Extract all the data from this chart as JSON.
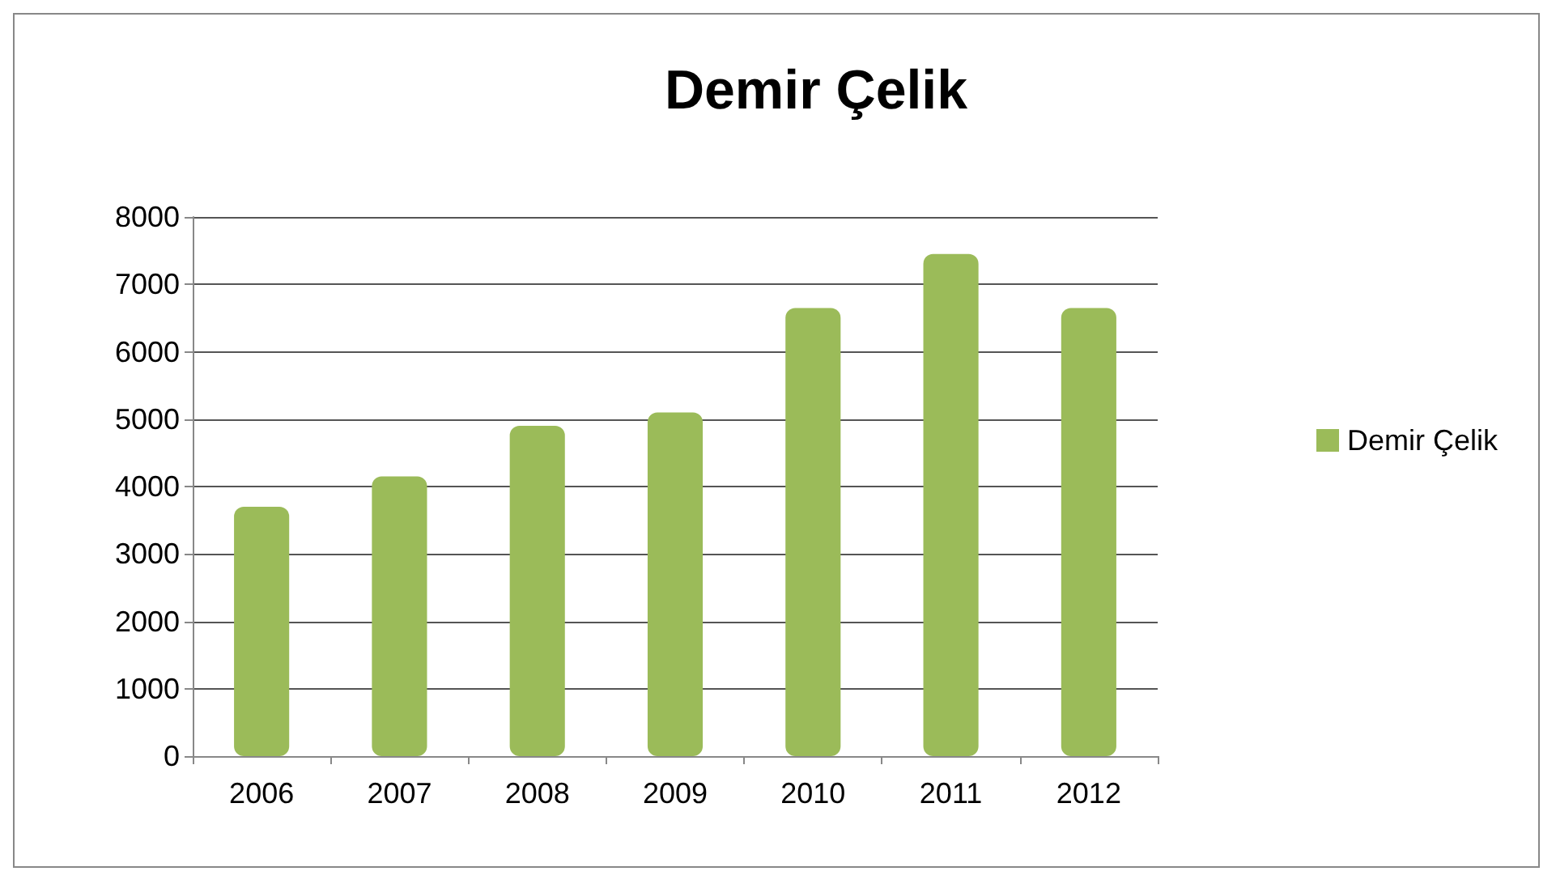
{
  "chart_data": {
    "type": "bar",
    "title": "Demir Çelik",
    "categories": [
      "2006",
      "2007",
      "2008",
      "2009",
      "2010",
      "2011",
      "2012"
    ],
    "series": [
      {
        "name": "Demir Çelik",
        "color": "#9bbb59",
        "values": [
          3700,
          4150,
          4900,
          5100,
          6650,
          7450,
          6650
        ]
      }
    ],
    "ylim": [
      0,
      8000
    ],
    "yticks": [
      0,
      1000,
      2000,
      3000,
      4000,
      5000,
      6000,
      7000,
      8000
    ],
    "grid": "y",
    "legend": "right"
  }
}
